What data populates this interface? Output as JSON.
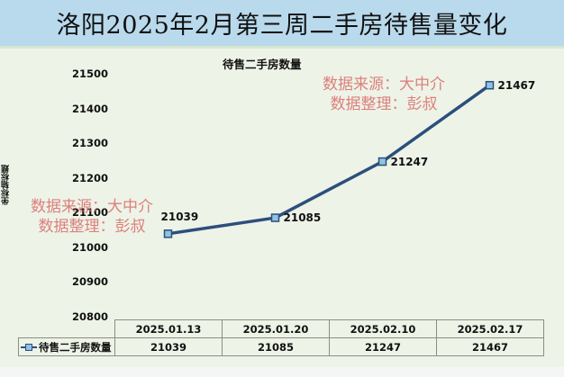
{
  "header": {
    "title": "洛阳2025年2月第三周二手房待售量变化"
  },
  "chart_data": {
    "type": "line",
    "title": "待售二手房数量",
    "xlabel": "",
    "ylabel": "坐标轴标题",
    "categories": [
      "2025.01.13",
      "2025.01.20",
      "2025.02.10",
      "2025.02.17"
    ],
    "series": [
      {
        "name": "待售二手房数量",
        "values": [
          21039,
          21085,
          21247,
          21467
        ],
        "color": "#2c4f7c",
        "marker_color": "#8fc3e0"
      }
    ],
    "ylim": [
      20800,
      21500
    ],
    "yticks": [
      21500,
      21400,
      21300,
      21200,
      21100,
      21000,
      20900,
      20800
    ],
    "data_labels": [
      "21039",
      "21085",
      "21247",
      "21467"
    ],
    "grid": false,
    "legend_position": "data-table",
    "data_table": true
  },
  "watermarks": [
    {
      "line1": "数据来源：大中介",
      "line2": "数据整理：彭叔"
    },
    {
      "line1": "数据来源：大中介",
      "line2": "数据整理：彭叔"
    }
  ],
  "table": {
    "series_label": "待售二手房数量",
    "headers": [
      "2025.01.13",
      "2025.01.20",
      "2025.02.10",
      "2025.02.17"
    ],
    "values": [
      "21039",
      "21085",
      "21247",
      "21467"
    ]
  },
  "colors": {
    "title_bg": "#b9d9ec",
    "chart_bg": "#eef3e7",
    "line": "#2c4f7c",
    "watermark": "#d65a5a"
  }
}
